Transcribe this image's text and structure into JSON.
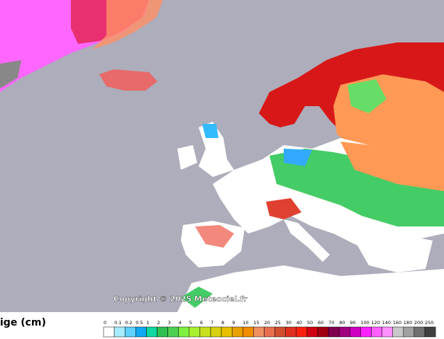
{
  "map": {
    "copyright": "Copyright © 2025 Meteociel.fr"
  },
  "legend": {
    "title": "ige (cm)",
    "labels": [
      "0",
      "0.1",
      "0.2",
      "0.5",
      "1",
      "2",
      "3",
      "4",
      "5",
      "6",
      "7",
      "8",
      "9",
      "10",
      "15",
      "20",
      "25",
      "30",
      "40",
      "50",
      "60",
      "70",
      "80",
      "90",
      "100",
      "120",
      "140",
      "160",
      "180",
      "200",
      "250"
    ]
  }
}
